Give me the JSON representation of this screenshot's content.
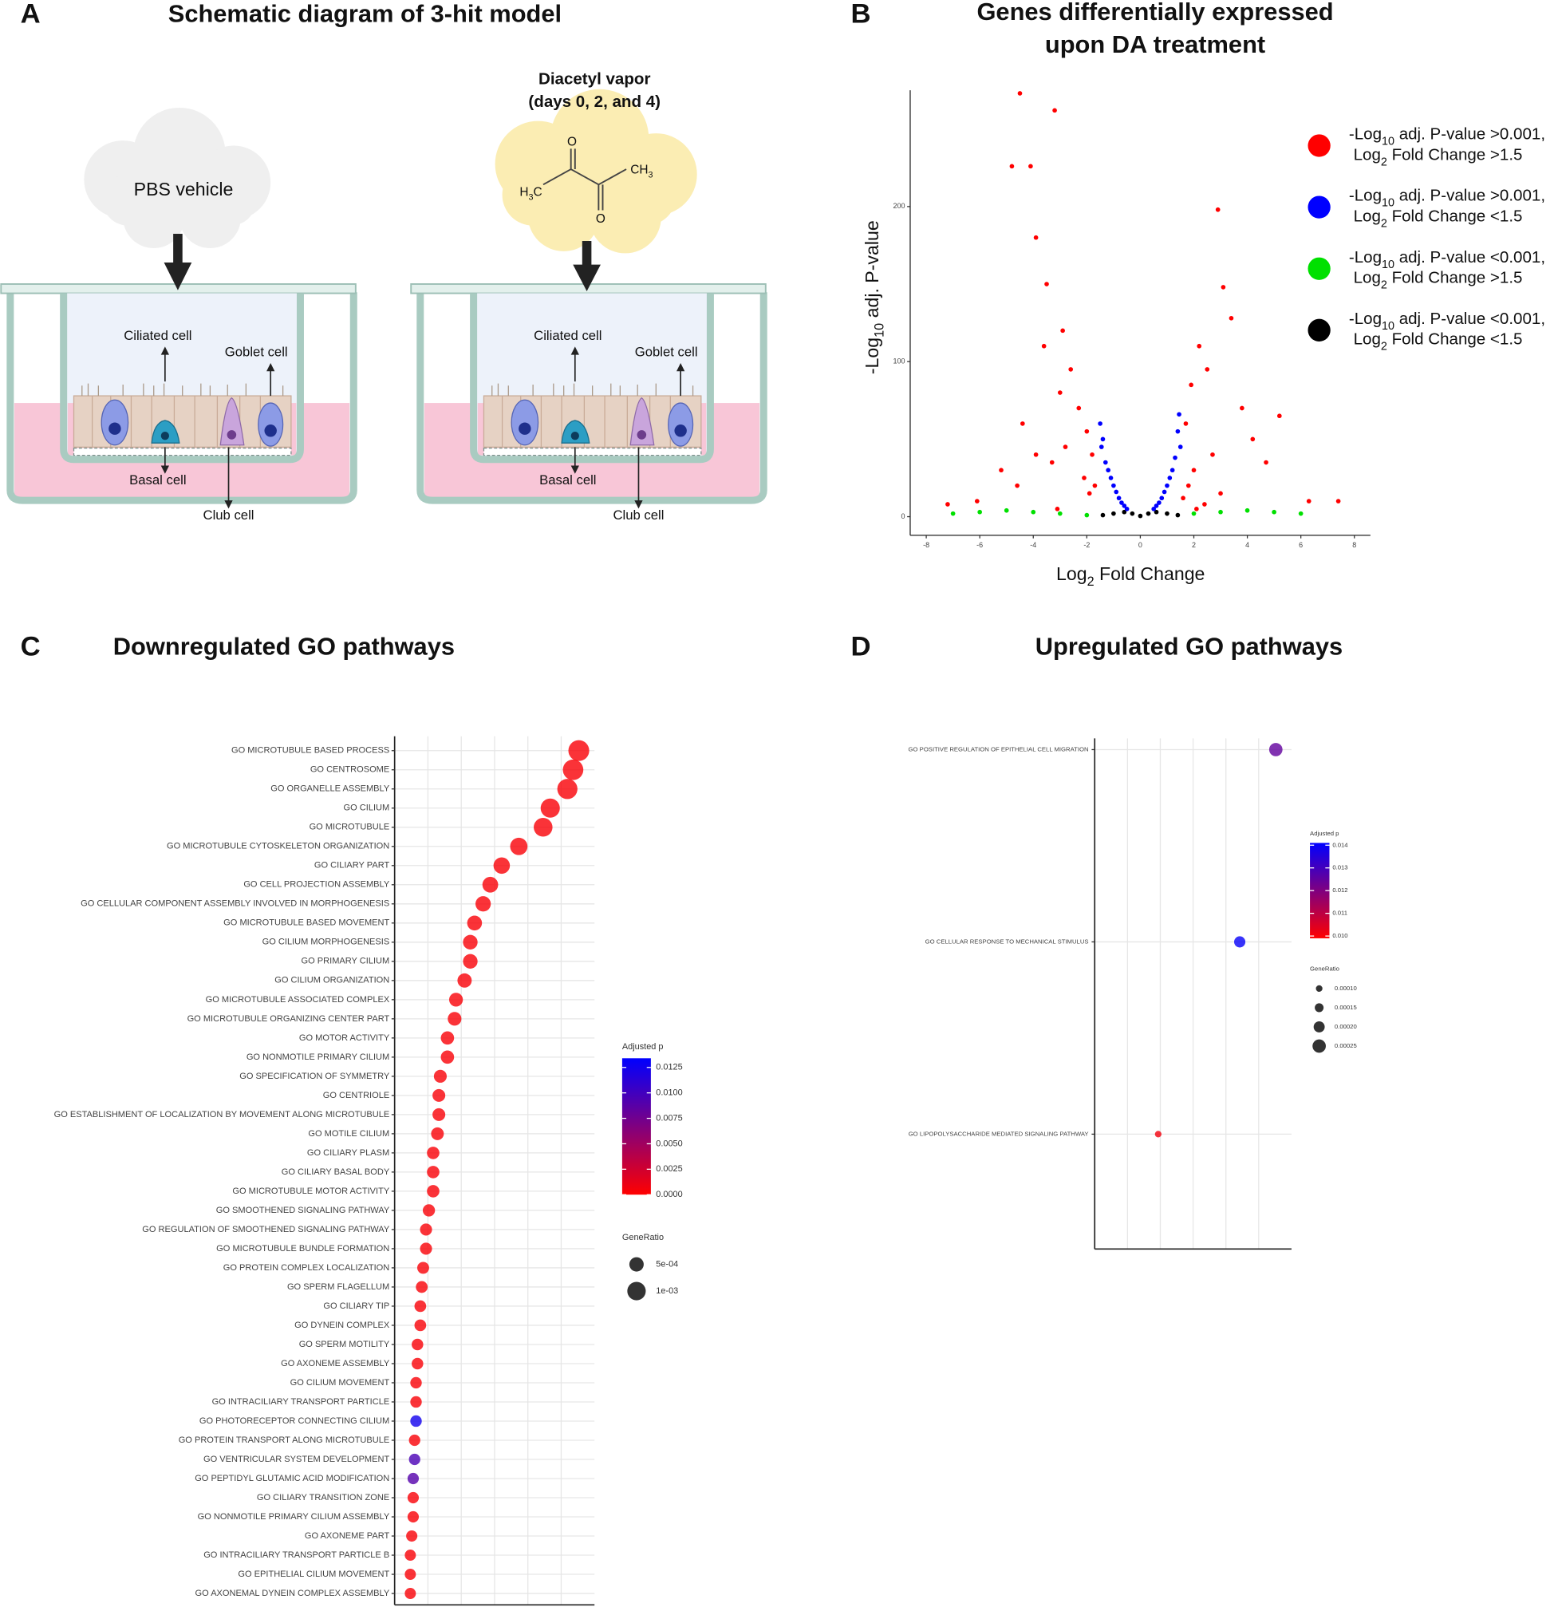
{
  "panels": [
    "A",
    "B",
    "C",
    "D"
  ],
  "diagram": {
    "title": "Schematic diagram of 3-hit model",
    "vehicle": "PBS vehicle",
    "exposure": [
      "Diacetyl vapor",
      "(days 0, 2, and 4)"
    ],
    "molecule": [
      "O",
      "O",
      "H3C",
      "CH3"
    ],
    "cells": [
      "Ciliated cell",
      "Goblet cell",
      "Basal cell",
      "Club cell"
    ]
  },
  "chart_data": [
    {
      "type": "scatter",
      "title": [
        "Genes differentially expressed",
        "upon DA treatment"
      ],
      "x_label": "Log2 Fold Change",
      "y_label": "-Log10 adj. P-value",
      "xlim": [
        -8.6,
        8.6
      ],
      "ylim": [
        -12,
        275
      ],
      "xticks": [
        -8,
        -6,
        -4,
        -2,
        0,
        2,
        4,
        6,
        8
      ],
      "yticks": [
        0,
        100,
        200
      ],
      "legend": "right",
      "series": [
        {
          "name": "-Log10 adj. P-value >0.001, Log2 Fold Change >1.5",
          "color": "#ff0000",
          "x": [
            -4.5,
            -3.2,
            -4.1,
            -4.8,
            -3.9,
            -3.5,
            -2.9,
            -2.6,
            -2.3,
            -2.0,
            -1.8,
            -1.7,
            -3.0,
            -3.6,
            -4.4,
            -5.2,
            -6.1,
            -7.2,
            -2.8,
            -3.3,
            -2.1,
            -1.9,
            -3.9,
            -4.6,
            -3.1,
            1.7,
            1.9,
            2.2,
            2.5,
            2.9,
            3.1,
            3.4,
            3.8,
            4.2,
            4.7,
            5.2,
            6.3,
            7.4,
            2.0,
            2.7,
            1.8,
            3.0,
            2.4,
            1.6,
            2.1
          ],
          "y": [
            273,
            262,
            226,
            226,
            180,
            150,
            120,
            95,
            70,
            55,
            40,
            20,
            80,
            110,
            60,
            30,
            10,
            8,
            45,
            35,
            25,
            15,
            40,
            20,
            5,
            60,
            85,
            110,
            95,
            198,
            148,
            128,
            70,
            50,
            35,
            65,
            10,
            10,
            30,
            40,
            20,
            15,
            8,
            12,
            5
          ]
        },
        {
          "name": "-Log10 adj. P-value >0.001, Log2 Fold Change <1.5",
          "color": "#0000ff",
          "x": [
            -1.5,
            -1.45,
            -1.4,
            -1.3,
            -1.2,
            -1.1,
            -1.0,
            -0.9,
            -0.8,
            -0.7,
            -0.6,
            -0.5,
            0.5,
            0.6,
            0.7,
            0.8,
            0.9,
            1.0,
            1.1,
            1.2,
            1.3,
            1.4,
            1.45,
            1.5
          ],
          "y": [
            60,
            45,
            50,
            35,
            30,
            25,
            20,
            16,
            12,
            9,
            7,
            5,
            5,
            7,
            9,
            12,
            16,
            20,
            25,
            30,
            38,
            55,
            66,
            45
          ]
        },
        {
          "name": "-Log10 adj. P-value <0.001, Log2 Fold Change >1.5",
          "color": "#00e000",
          "x": [
            -7,
            -6,
            -5,
            -4,
            -3,
            -2,
            2,
            3,
            4,
            5,
            6
          ],
          "y": [
            2,
            3,
            4,
            3,
            2,
            1,
            2,
            3,
            4,
            3,
            2
          ]
        },
        {
          "name": "-Log10 adj. P-value <0.001, Log2 Fold Change <1.5",
          "color": "#000000",
          "x": [
            -1.4,
            -1,
            -0.6,
            -0.3,
            0,
            0.3,
            0.6,
            1,
            1.4
          ],
          "y": [
            1,
            2,
            3,
            2,
            0.5,
            2,
            3,
            2,
            1
          ]
        }
      ]
    },
    {
      "type": "dot",
      "title": "Downregulated GO pathways",
      "categories": [
        "GO MICROTUBULE BASED PROCESS",
        "GO CENTROSOME",
        "GO ORGANELLE ASSEMBLY",
        "GO CILIUM",
        "GO MICROTUBULE",
        "GO MICROTUBULE CYTOSKELETON ORGANIZATION",
        "GO CILIARY PART",
        "GO CELL PROJECTION ASSEMBLY",
        "GO CELLULAR COMPONENT ASSEMBLY INVOLVED IN MORPHOGENESIS",
        "GO MICROTUBULE BASED MOVEMENT",
        "GO CILIUM MORPHOGENESIS",
        "GO PRIMARY CILIUM",
        "GO CILIUM ORGANIZATION",
        "GO MICROTUBULE ASSOCIATED COMPLEX",
        "GO MICROTUBULE ORGANIZING CENTER PART",
        "GO MOTOR ACTIVITY",
        "GO NONMOTILE PRIMARY CILIUM",
        "GO SPECIFICATION OF SYMMETRY",
        "GO CENTRIOLE",
        "GO ESTABLISHMENT OF LOCALIZATION BY MOVEMENT ALONG MICROTUBULE",
        "GO MOTILE CILIUM",
        "GO CILIARY PLASM",
        "GO CILIARY BASAL BODY",
        "GO MICROTUBULE MOTOR ACTIVITY",
        "GO SMOOTHENED SIGNALING PATHWAY",
        "GO REGULATION OF SMOOTHENED SIGNALING PATHWAY",
        "GO MICROTUBULE BUNDLE FORMATION",
        "GO PROTEIN COMPLEX LOCALIZATION",
        "GO SPERM FLAGELLUM",
        "GO CILIARY TIP",
        "GO DYNEIN COMPLEX",
        "GO SPERM MOTILITY",
        "GO AXONEME ASSEMBLY",
        "GO CILIUM MOVEMENT",
        "GO INTRACILIARY TRANSPORT PARTICLE",
        "GO PHOTORECEPTOR CONNECTING CILIUM",
        "GO PROTEIN TRANSPORT ALONG MICROTUBULE",
        "GO VENTRICULAR SYSTEM DEVELOPMENT",
        "GO PEPTIDYL GLUTAMIC ACID MODIFICATION",
        "GO CILIARY TRANSITION ZONE",
        "GO NONMOTILE PRIMARY CILIUM ASSEMBLY",
        "GO AXONEME PART",
        "GO INTRACILIARY TRANSPORT PARTICLE B",
        "GO EPITHELIAL CILIUM MOVEMENT",
        "GO AXONEMAL DYNEIN COMPLEX ASSEMBLY"
      ],
      "values": [
        0.00129,
        0.00125,
        0.00121,
        0.00109,
        0.00104,
        0.00087,
        0.00075,
        0.00067,
        0.00062,
        0.00056,
        0.00053,
        0.00053,
        0.00049,
        0.00043,
        0.00042,
        0.00037,
        0.00037,
        0.00032,
        0.00031,
        0.00031,
        0.0003,
        0.00027,
        0.00027,
        0.00027,
        0.00024,
        0.00022,
        0.00022,
        0.0002,
        0.00019,
        0.00018,
        0.00018,
        0.00016,
        0.00016,
        0.00015,
        0.00015,
        0.00015,
        0.00014,
        0.00014,
        0.00013,
        0.00013,
        0.00013,
        0.00012,
        0.00011,
        0.00011,
        0.00011
      ],
      "padj": [
        0.0003,
        0.0003,
        0.0003,
        0.0003,
        0.0003,
        0.0003,
        0.0003,
        0.0003,
        0.0003,
        0.0003,
        0.0003,
        0.0003,
        0.0003,
        0.0003,
        0.0003,
        0.0003,
        0.0003,
        0.0003,
        0.0003,
        0.0003,
        0.0003,
        0.0003,
        0.0003,
        0.0003,
        0.0003,
        0.0003,
        0.0003,
        0.0003,
        0.0003,
        0.0003,
        0.0003,
        0.0003,
        0.0003,
        0.0003,
        0.0003,
        0.0125,
        0.0003,
        0.0095,
        0.009,
        0.0003,
        0.0003,
        0.0003,
        0.0003,
        0.0003,
        0.0003
      ],
      "xlim": [
        0,
        0.0014
      ],
      "grid": true,
      "color_title": "Adjusted p",
      "colors": [
        "#ff0000",
        "#0000ff"
      ],
      "clim": [
        0,
        0.0134
      ],
      "cticks": [
        {
          "value": 0,
          "label": "0.0000"
        },
        {
          "value": 0.0025,
          "label": "0.0025"
        },
        {
          "value": 0.005,
          "label": "0.0050"
        },
        {
          "value": 0.0075,
          "label": "0.0075"
        },
        {
          "value": 0.01,
          "label": "0.0100"
        },
        {
          "value": 0.0125,
          "label": "0.0125"
        }
      ],
      "size_title": "GeneRatio",
      "size_ticks": [
        {
          "value": 0.0005,
          "label": "5e-04"
        },
        {
          "value": 0.001,
          "label": "1e-03"
        }
      ]
    },
    {
      "type": "dot",
      "title": "Upregulated GO pathways",
      "categories": [
        "GO POSITIVE REGULATION OF EPITHELIAL CELL MIGRATION",
        "GO CELLULAR RESPONSE TO MECHANICAL STIMULUS",
        "GO LIPOPOLYSACCHARIDE MEDIATED SIGNALING PATHWAY"
      ],
      "values": [
        0.00025,
        0.000204,
        0.0001
      ],
      "padj": [
        0.0125,
        0.014,
        0.0101
      ],
      "xlim": [
        1.9e-05,
        0.00027
      ],
      "grid": true,
      "color_title": "Adjusted p",
      "colors": [
        "#ff0000",
        "#0000ff"
      ],
      "clim": [
        0.0099,
        0.0141
      ],
      "cticks": [
        {
          "value": 0.01,
          "label": "0.010"
        },
        {
          "value": 0.011,
          "label": "0.011"
        },
        {
          "value": 0.012,
          "label": "0.012"
        },
        {
          "value": 0.013,
          "label": "0.013"
        },
        {
          "value": 0.014,
          "label": "0.014"
        }
      ],
      "size_title": "GeneRatio",
      "size_ticks": [
        {
          "value": 0.0001,
          "label": "0.00010"
        },
        {
          "value": 0.00015,
          "label": "0.00015"
        },
        {
          "value": 0.0002,
          "label": "0.00020"
        },
        {
          "value": 0.00025,
          "label": "0.00025"
        }
      ]
    }
  ]
}
